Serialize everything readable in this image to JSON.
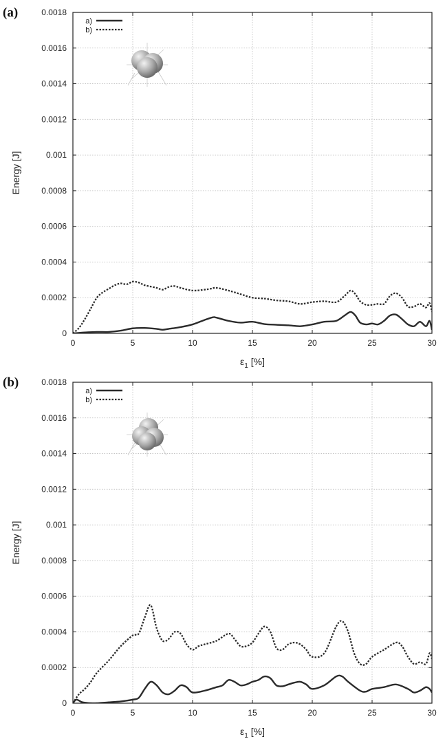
{
  "chart_data": [
    {
      "type": "line",
      "panel_label": "(a)",
      "ylabel": "Energy [J]",
      "xlabel_symbol": "ε",
      "xlabel_sub": "1",
      "xlabel_unit": "[%]",
      "xlim": [
        0,
        30
      ],
      "ylim": [
        0,
        0.0018
      ],
      "xticks": [
        "0",
        "5",
        "10",
        "15",
        "20",
        "25",
        "30"
      ],
      "yticks": [
        "0",
        "0.0002",
        "0.0004",
        "0.0006",
        "0.0008",
        "0.001",
        "0.0012",
        "0.0014",
        "0.0016",
        "0.0018"
      ],
      "grid": true,
      "legend_position": "top-left",
      "series": [
        {
          "name": "a)",
          "style": "solid",
          "x": [
            0,
            1,
            2,
            3,
            4,
            5,
            6,
            7,
            7.5,
            8,
            9,
            10,
            11,
            11.7,
            12,
            13,
            14,
            15,
            16,
            17,
            18,
            19,
            20,
            21,
            22,
            22.7,
            23.2,
            23.6,
            24,
            24.5,
            25,
            25.5,
            26,
            26.5,
            27,
            27.5,
            28,
            28.5,
            29,
            29.5,
            29.8,
            30
          ],
          "y": [
            0,
            5e-06,
            8e-06,
            8e-06,
            1.5e-05,
            2.8e-05,
            3e-05,
            2.5e-05,
            2e-05,
            2.5e-05,
            3.5e-05,
            5e-05,
            7.5e-05,
            9e-05,
            8.8e-05,
            7e-05,
            6e-05,
            6.5e-05,
            5.2e-05,
            4.8e-05,
            4.5e-05,
            4e-05,
            5e-05,
            6.5e-05,
            7e-05,
            0.0001,
            0.00012,
            0.0001,
            6e-05,
            5e-05,
            5.5e-05,
            5e-05,
            7e-05,
            0.0001,
            0.000105,
            8e-05,
            5e-05,
            4e-05,
            6.5e-05,
            4e-05,
            7e-05,
            2e-05
          ]
        },
        {
          "name": "b)",
          "style": "dashed",
          "x": [
            0,
            0.5,
            1,
            1.5,
            2,
            2.5,
            3,
            3.5,
            4,
            4.5,
            5,
            5.5,
            6,
            7,
            7.5,
            8,
            8.5,
            9,
            10,
            11,
            11.5,
            12,
            13,
            14,
            15,
            16,
            17,
            18,
            19,
            20,
            21,
            22,
            22.7,
            23.2,
            23.6,
            24,
            24.5,
            25,
            25.5,
            26,
            26.5,
            27,
            27.5,
            28,
            28.5,
            29,
            29.5,
            29.8,
            30
          ],
          "y": [
            0,
            3e-05,
            8e-05,
            0.00014,
            0.0002,
            0.00023,
            0.00025,
            0.00027,
            0.00028,
            0.000275,
            0.00029,
            0.000285,
            0.00027,
            0.000255,
            0.000245,
            0.00026,
            0.000265,
            0.000255,
            0.00024,
            0.000245,
            0.00025,
            0.000255,
            0.00024,
            0.00022,
            0.0002,
            0.000195,
            0.000185,
            0.00018,
            0.000165,
            0.000175,
            0.00018,
            0.000175,
            0.00021,
            0.00024,
            0.00022,
            0.00018,
            0.00016,
            0.00016,
            0.000165,
            0.000165,
            0.00021,
            0.000225,
            0.0002,
            0.00015,
            0.00015,
            0.000165,
            0.000145,
            0.00017,
            0.00012
          ]
        }
      ]
    },
    {
      "type": "line",
      "panel_label": "(b)",
      "ylabel": "Energy [J]",
      "xlabel_symbol": "ε",
      "xlabel_sub": "1",
      "xlabel_unit": "[%]",
      "xlim": [
        0,
        30
      ],
      "ylim": [
        0,
        0.0018
      ],
      "xticks": [
        "0",
        "5",
        "10",
        "15",
        "20",
        "25",
        "30"
      ],
      "yticks": [
        "0",
        "0.0002",
        "0.0004",
        "0.0006",
        "0.0008",
        "0.001",
        "0.0012",
        "0.0014",
        "0.0016",
        "0.0018"
      ],
      "grid": true,
      "legend_position": "top-left",
      "series": [
        {
          "name": "a)",
          "style": "solid",
          "x": [
            0,
            0.3,
            0.8,
            1.5,
            2,
            3,
            4,
            5,
            5.5,
            6,
            6.5,
            7,
            7.5,
            8,
            8.5,
            9,
            9.5,
            10,
            11,
            12,
            12.5,
            13,
            13.5,
            14,
            14.5,
            15,
            15.5,
            16,
            16.5,
            17,
            17.5,
            18,
            18.5,
            19,
            19.5,
            20,
            21,
            22,
            22.5,
            23,
            24,
            24.5,
            25,
            26,
            27,
            28,
            28.5,
            29,
            29.5,
            29.8,
            30
          ],
          "y": [
            0,
            2e-05,
            5e-06,
            0,
            0,
            5e-06,
            1e-05,
            2e-05,
            3e-05,
            8e-05,
            0.00012,
            0.0001,
            6e-05,
            5e-05,
            7e-05,
            0.0001,
            9e-05,
            6e-05,
            7e-05,
            9e-05,
            0.0001,
            0.00013,
            0.00012,
            0.0001,
            0.000105,
            0.00012,
            0.00013,
            0.00015,
            0.00014,
            0.0001,
            9.5e-05,
            0.000105,
            0.000115,
            0.00012,
            0.000105,
            8e-05,
            0.0001,
            0.00015,
            0.00015,
            0.00012,
            7e-05,
            6.5e-05,
            8e-05,
            9e-05,
            0.000105,
            8e-05,
            6e-05,
            7e-05,
            9e-05,
            8e-05,
            6e-05
          ]
        },
        {
          "name": "b)",
          "style": "dashed",
          "x": [
            0,
            0.5,
            1,
            1.5,
            2,
            3,
            4,
            5,
            5.5,
            6,
            6.5,
            7,
            7.5,
            8,
            8.5,
            9,
            9.5,
            10,
            10.5,
            11,
            12,
            13,
            13.5,
            14,
            14.5,
            15,
            15.5,
            16,
            16.5,
            17,
            17.5,
            18,
            18.5,
            19,
            19.5,
            20,
            21,
            22,
            22.5,
            23,
            23.5,
            24,
            24.5,
            25,
            26,
            27,
            27.5,
            28,
            28.5,
            29,
            29.5,
            29.8,
            30
          ],
          "y": [
            0,
            5e-05,
            8e-05,
            0.00012,
            0.00017,
            0.00024,
            0.00032,
            0.00038,
            0.00039,
            0.00048,
            0.00055,
            0.00042,
            0.00035,
            0.00036,
            0.0004,
            0.00039,
            0.00033,
            0.0003,
            0.00032,
            0.00033,
            0.00035,
            0.00039,
            0.00036,
            0.00032,
            0.00032,
            0.00034,
            0.00039,
            0.00043,
            0.0004,
            0.00031,
            0.0003,
            0.00033,
            0.00034,
            0.00033,
            0.0003,
            0.00026,
            0.00028,
            0.00043,
            0.00046,
            0.0004,
            0.00028,
            0.00022,
            0.00022,
            0.00026,
            0.0003,
            0.00034,
            0.00032,
            0.00026,
            0.00022,
            0.00023,
            0.00022,
            0.00028,
            0.00025
          ]
        }
      ]
    }
  ],
  "colors": {
    "line": "#2b2b2b",
    "grid": "#bdbdbd",
    "axis": "#222222"
  }
}
